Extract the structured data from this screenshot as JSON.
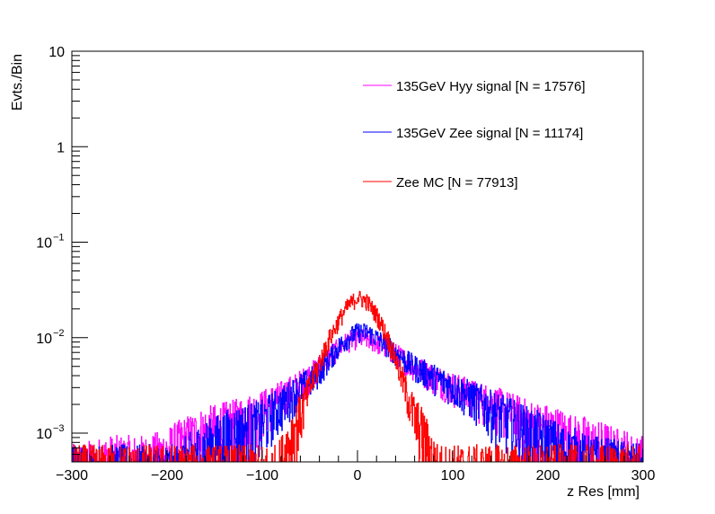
{
  "chart_data": {
    "type": "line",
    "xlabel": "z Res [mm]",
    "ylabel": "Evts./Bin",
    "xlim": [
      -300,
      300
    ],
    "ylim": [
      0.0005,
      10
    ],
    "y_scale": "log",
    "grid": false,
    "legend_position": "top-right",
    "x_ticks": [
      -300,
      -200,
      -100,
      0,
      100,
      200,
      300
    ],
    "x_tick_labels": [
      "−300",
      "−200",
      "−100",
      "0",
      "100",
      "200",
      "300"
    ],
    "y_ticks": [
      {
        "value": 10,
        "label": "10",
        "exp": ""
      },
      {
        "value": 1,
        "label": "1",
        "exp": ""
      },
      {
        "value": 0.1,
        "label": "10",
        "exp": "−1"
      },
      {
        "value": 0.01,
        "label": "10",
        "exp": "−2"
      },
      {
        "value": 0.001,
        "label": "10",
        "exp": "−3"
      }
    ],
    "series": [
      {
        "name": "135GeV Hyy signal [N = 17576]",
        "color": "#ff00ff",
        "x": [
          -300,
          -260,
          -240,
          -220,
          -200,
          -190,
          -180,
          -170,
          -160,
          -150,
          -140,
          -130,
          -120,
          -110,
          -100,
          -90,
          -80,
          -70,
          -60,
          -50,
          -40,
          -30,
          -20,
          -10,
          0,
          10,
          20,
          30,
          40,
          50,
          60,
          70,
          80,
          90,
          100,
          110,
          120,
          130,
          140,
          150,
          160,
          170,
          180,
          190,
          200,
          210,
          220,
          230,
          240,
          250,
          260,
          270,
          280,
          290,
          300
        ],
        "y": [
          0.0004,
          0.0005,
          0.0005,
          0.0005,
          0.0006,
          0.0007,
          0.0008,
          0.0009,
          0.001,
          0.0011,
          0.0012,
          0.0013,
          0.0015,
          0.0016,
          0.0018,
          0.0021,
          0.0024,
          0.0028,
          0.0033,
          0.004,
          0.005,
          0.0063,
          0.0078,
          0.0093,
          0.01,
          0.0098,
          0.009,
          0.008,
          0.0068,
          0.0058,
          0.005,
          0.0044,
          0.0039,
          0.0035,
          0.0031,
          0.0028,
          0.0025,
          0.0023,
          0.0021,
          0.0019,
          0.0017,
          0.0015,
          0.0013,
          0.0012,
          0.0011,
          0.001,
          0.0009,
          0.0008,
          0.0008,
          0.0007,
          0.0007,
          0.0006,
          0.0006,
          0.0005,
          0.0005
        ]
      },
      {
        "name": "135GeV Zee signal [N = 11174]",
        "color": "#0000ff",
        "x": [
          -300,
          -190,
          -180,
          -170,
          -160,
          -150,
          -140,
          -130,
          -120,
          -110,
          -100,
          -90,
          -80,
          -70,
          -60,
          -50,
          -40,
          -30,
          -20,
          -10,
          0,
          10,
          20,
          30,
          40,
          50,
          60,
          70,
          80,
          90,
          100,
          110,
          120,
          130,
          140,
          150,
          160,
          170,
          180,
          190,
          200,
          210,
          220,
          230,
          240,
          250,
          300
        ],
        "y": [
          0.0004,
          0.0004,
          0.0005,
          0.0006,
          0.0007,
          0.0008,
          0.0009,
          0.001,
          0.0011,
          0.0012,
          0.0013,
          0.0017,
          0.002,
          0.0025,
          0.003,
          0.0035,
          0.0045,
          0.006,
          0.008,
          0.01,
          0.0115,
          0.0115,
          0.01,
          0.0085,
          0.007,
          0.0058,
          0.005,
          0.0044,
          0.0039,
          0.0035,
          0.0031,
          0.0027,
          0.0024,
          0.0021,
          0.0018,
          0.0016,
          0.0014,
          0.0012,
          0.001,
          0.0009,
          0.0008,
          0.0007,
          0.0006,
          0.0006,
          0.0005,
          0.0005,
          0.0004
        ]
      },
      {
        "name": "Zee MC [N = 77913]",
        "color": "#ff0000",
        "x": [
          -300,
          -85,
          -80,
          -70,
          -60,
          -50,
          -40,
          -30,
          -20,
          -10,
          0,
          10,
          20,
          30,
          40,
          50,
          60,
          70,
          80,
          85,
          300
        ],
        "y": [
          0.0004,
          0.0004,
          0.0005,
          0.0009,
          0.0016,
          0.003,
          0.0055,
          0.0095,
          0.015,
          0.0215,
          0.0265,
          0.024,
          0.0175,
          0.011,
          0.006,
          0.003,
          0.0015,
          0.0009,
          0.0005,
          0.0004,
          0.0004
        ]
      }
    ]
  }
}
